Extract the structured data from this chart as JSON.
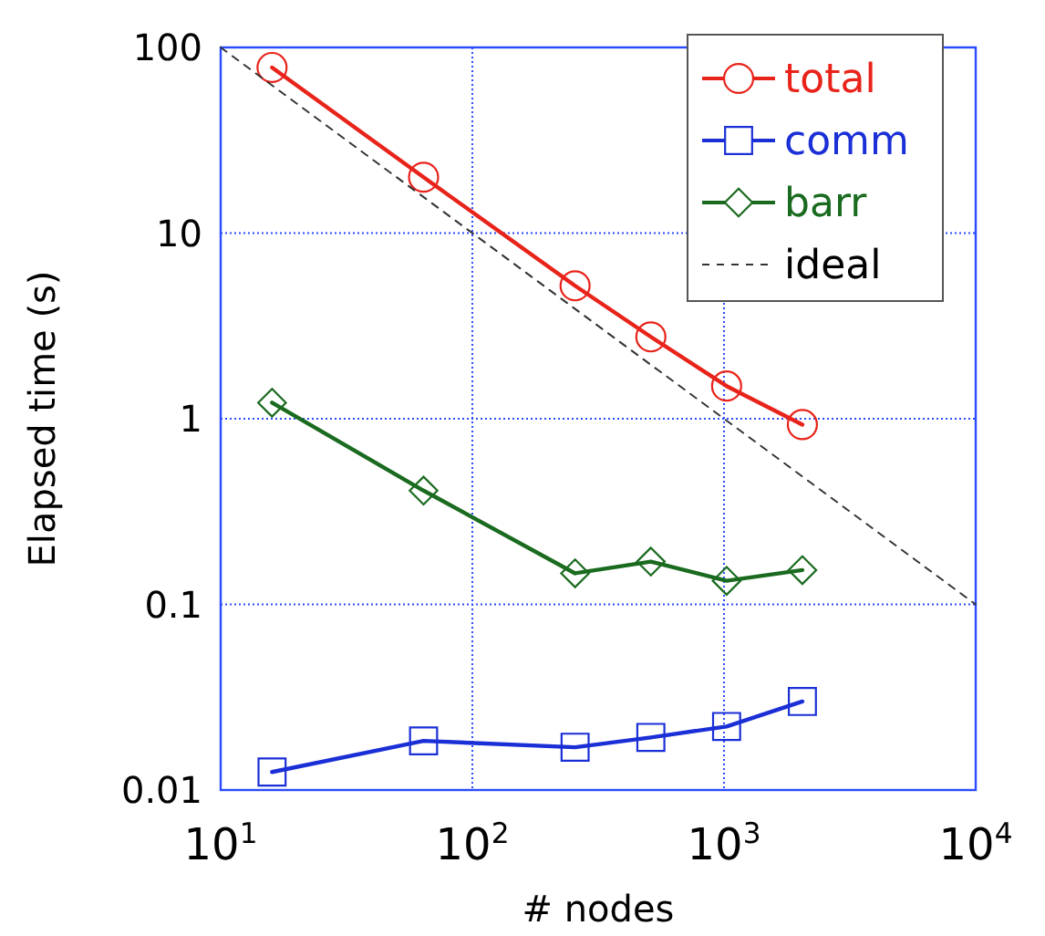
{
  "chart_data": {
    "type": "line",
    "xlabel": "# nodes",
    "ylabel": "Elapsed time (s)",
    "log": "xy",
    "grid": true,
    "legend": "top right",
    "xlim": [
      10,
      10000
    ],
    "ylim": [
      0.01,
      100
    ],
    "xticks": [
      {
        "value": 10,
        "label": "10$^{1}$"
      },
      {
        "value": 100,
        "label": "10$^{2}$"
      },
      {
        "value": 1000,
        "label": "10$^{3}$"
      },
      {
        "value": 10000,
        "label": "10$^{4}$"
      }
    ],
    "yticks": [
      0.01,
      0.1,
      1,
      10,
      100
    ],
    "series": [
      {
        "name": "total",
        "color": "#e8231a",
        "marker": "circle",
        "x": [
          16,
          64,
          256,
          512,
          1024,
          2048
        ],
        "values": [
          78,
          20,
          5.2,
          2.76,
          1.5,
          0.93
        ]
      },
      {
        "name": "comm",
        "color": "#1a2fd6",
        "marker": "square",
        "x": [
          16,
          64,
          256,
          512,
          1024,
          2048
        ],
        "values": [
          0.0125,
          0.0184,
          0.017,
          0.0192,
          0.022,
          0.03
        ]
      },
      {
        "name": "barr",
        "color": "#1a6b1f",
        "marker": "diamond",
        "x": [
          16,
          64,
          256,
          512,
          1024,
          2048
        ],
        "values": [
          1.22,
          0.41,
          0.147,
          0.17,
          0.134,
          0.153
        ]
      },
      {
        "name": "ideal",
        "color": "#333333",
        "marker": "none",
        "line_style": "dashed",
        "x": [
          10,
          10000
        ],
        "values": [
          100,
          0.1
        ]
      }
    ]
  }
}
